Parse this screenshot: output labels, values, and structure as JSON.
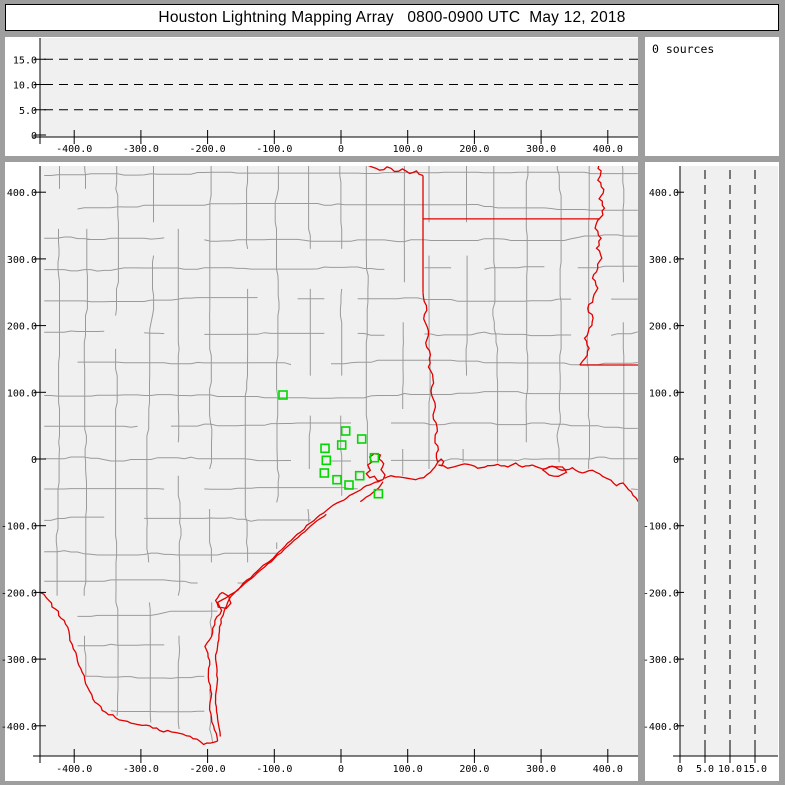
{
  "window": {
    "title": "Houston Lightning Mapping Array   0800-0900 UTC  May 12, 2018"
  },
  "sources_panel": {
    "label": "0 sources"
  },
  "colors": {
    "frame": "#9e9e9e",
    "panel": "#ffffff",
    "plot_bg": "#f0f0f0",
    "axis": "#000000",
    "county": "#9a9a9a",
    "state_border_red": "#e10000",
    "station_green": "#00d800",
    "text": "#000000"
  },
  "chart_data": {
    "type": "scatter",
    "subtype": "lma-multi-panel-map",
    "title": "Houston Lightning Mapping Array   0800-0900 UTC  May 12, 2018",
    "sources_count": 0,
    "units": "km",
    "ew_axis": {
      "ticks": [
        -400,
        -300,
        -200,
        -100,
        0,
        100,
        200,
        300,
        400
      ],
      "labels": [
        "-400.0",
        "-300.0",
        "-200.0",
        "-100.0",
        "0",
        "100.0",
        "200.0",
        "300.0",
        "400.0"
      ],
      "lim": [
        -450,
        445
      ]
    },
    "ns_axis": {
      "ticks": [
        400,
        300,
        200,
        100,
        0,
        -100,
        -200,
        -300,
        -400
      ],
      "labels": [
        "400.0",
        "300.0",
        "200.0",
        "100.0",
        "0",
        "-100.0",
        "-200.0",
        "-300.0",
        "-400.0"
      ],
      "lim": [
        -445,
        439
      ]
    },
    "alt_axis": {
      "ticks": [
        0,
        5,
        10,
        15
      ],
      "labels": [
        "0",
        "5.0",
        "10.0",
        "15.0"
      ],
      "dashed_levels": [
        5,
        10,
        15
      ],
      "lim": [
        0,
        19.2
      ]
    },
    "top_panel_series": [],
    "right_panel_series": [],
    "map": {
      "stations_km": [
        [
          -87,
          96
        ],
        [
          7,
          42
        ],
        [
          31,
          30
        ],
        [
          1,
          21
        ],
        [
          -24,
          16
        ],
        [
          -22,
          -2
        ],
        [
          50,
          2
        ],
        [
          -25,
          -21
        ],
        [
          28,
          -25
        ],
        [
          -6,
          -31
        ],
        [
          12,
          -39
        ],
        [
          56,
          -52
        ]
      ],
      "county_grid": {
        "cell_km": 47,
        "seed": 1234,
        "jog_probability": 0.25,
        "max_offset_km": 5,
        "skip_probability": 0.1
      },
      "borders_km": [
        {
          "name": "rio-grande",
          "amp": 2.2,
          "pts": [
            [
              -455,
              -195
            ],
            [
              -438,
              -212
            ],
            [
              -428,
              -225
            ],
            [
              -415,
              -242
            ],
            [
              -408,
              -258
            ],
            [
              -403,
              -278
            ],
            [
              -396,
              -297
            ],
            [
              -388,
              -320
            ],
            [
              -380,
              -342
            ],
            [
              -372,
              -360
            ],
            [
              -358,
              -377
            ],
            [
              -338,
              -388
            ],
            [
              -315,
              -396
            ],
            [
              -292,
              -399
            ],
            [
              -272,
              -407
            ],
            [
              -248,
              -410
            ],
            [
              -232,
              -415
            ],
            [
              -216,
              -420
            ],
            [
              -206,
              -428
            ],
            [
              -196,
              -426
            ],
            [
              -185,
              -423
            ]
          ]
        },
        {
          "name": "coast-texas",
          "amp": 1.2,
          "pts": [
            [
              -185,
              -423
            ],
            [
              -191,
              -400
            ],
            [
              -197,
              -376
            ],
            [
              -194,
              -352
            ],
            [
              -199,
              -327
            ],
            [
              -197,
              -302
            ],
            [
              -204,
              -281
            ],
            [
              -194,
              -266
            ],
            [
              -189,
              -242
            ],
            [
              -179,
              -227
            ],
            [
              -185,
              -215
            ],
            [
              -172,
              -208
            ],
            [
              -160,
              -200
            ],
            [
              -150,
              -191
            ],
            [
              -131,
              -173
            ],
            [
              -111,
              -156
            ],
            [
              -89,
              -136
            ],
            [
              -66,
              -113
            ],
            [
              -46,
              -96
            ],
            [
              -26,
              -81
            ],
            [
              -6,
              -66
            ],
            [
              9,
              -58
            ],
            [
              22,
              -50
            ],
            [
              30,
              -46
            ]
          ]
        },
        {
          "name": "lagoon-mainland",
          "amp": 0.8,
          "pts": [
            [
              30,
              -46
            ],
            [
              38,
              -40
            ],
            [
              47,
              -37
            ],
            [
              56,
              -34
            ],
            [
              62,
              -31
            ]
          ]
        },
        {
          "name": "galveston-island",
          "amp": 0.8,
          "pts": [
            [
              29,
              -64
            ],
            [
              38,
              -57
            ],
            [
              48,
              -50
            ],
            [
              56,
              -44
            ],
            [
              63,
              -34
            ]
          ]
        },
        {
          "name": "galveston-bay",
          "amp": 1.0,
          "pts": [
            [
              63,
              -31
            ],
            [
              66,
              -24
            ],
            [
              60,
              -16
            ],
            [
              64,
              -7
            ],
            [
              57,
              0
            ],
            [
              59,
              6
            ],
            [
              50,
              8
            ],
            [
              43,
              3
            ],
            [
              46,
              -5
            ],
            [
              40,
              -9
            ],
            [
              44,
              -17
            ],
            [
              38,
              -22
            ],
            [
              43,
              -28
            ],
            [
              50,
              -26
            ],
            [
              55,
              -33
            ],
            [
              63,
              -31
            ]
          ]
        },
        {
          "name": "coast-bolivar-east",
          "amp": 1.0,
          "pts": [
            [
              65,
              -29
            ],
            [
              75,
              -25
            ],
            [
              88,
              -27
            ],
            [
              100,
              -29
            ],
            [
              112,
              -31
            ],
            [
              124,
              -28
            ],
            [
              134,
              -20
            ],
            [
              141,
              -12
            ],
            [
              145,
              -5
            ]
          ]
        },
        {
          "name": "sabine-river",
          "amp": 2.0,
          "pts": [
            [
              123,
              250
            ],
            [
              128,
              230
            ],
            [
              124,
              210
            ],
            [
              131,
              192
            ],
            [
              127,
              174
            ],
            [
              134,
              156
            ],
            [
              131,
              138
            ],
            [
              138,
              120
            ],
            [
              135,
              102
            ],
            [
              141,
              84
            ],
            [
              138,
              66
            ],
            [
              144,
              48
            ],
            [
              141,
              30
            ],
            [
              146,
              14
            ],
            [
              143,
              2
            ],
            [
              145,
              -5
            ]
          ]
        },
        {
          "name": "sabine-lake",
          "amp": 0.6,
          "pts": [
            [
              145,
              -5
            ],
            [
              150,
              0
            ],
            [
              154,
              -4
            ],
            [
              151,
              -10
            ],
            [
              146,
              -9
            ],
            [
              147,
              -9
            ]
          ]
        },
        {
          "name": "coast-louisiana",
          "amp": 1.3,
          "pts": [
            [
              147,
              -9
            ],
            [
              160,
              -14
            ],
            [
              175,
              -10
            ],
            [
              190,
              -8
            ],
            [
              205,
              -14
            ],
            [
              220,
              -10
            ],
            [
              235,
              -8
            ],
            [
              250,
              -12
            ],
            [
              262,
              -6
            ],
            [
              272,
              -12
            ],
            [
              287,
              -9
            ],
            [
              302,
              -15
            ],
            [
              317,
              -11
            ],
            [
              332,
              -17
            ],
            [
              347,
              -13
            ],
            [
              362,
              -21
            ],
            [
              377,
              -17
            ],
            [
              392,
              -26
            ],
            [
              405,
              -32
            ],
            [
              413,
              -40
            ],
            [
              423,
              -36
            ],
            [
              431,
              -46
            ],
            [
              442,
              -58
            ],
            [
              450,
              -70
            ]
          ]
        },
        {
          "name": "marsh-island",
          "amp": 0.8,
          "pts": [
            [
              302,
              -16
            ],
            [
              312,
              -24
            ],
            [
              326,
              -26
            ],
            [
              338,
              -20
            ],
            [
              332,
              -12
            ],
            [
              316,
              -11
            ],
            [
              302,
              -16
            ]
          ]
        },
        {
          "name": "barrier-island",
          "amp": 1.0,
          "pts": [
            [
              -181,
              -416
            ],
            [
              -185,
              -390
            ],
            [
              -188,
              -360
            ],
            [
              -185,
              -330
            ],
            [
              -188,
              -300
            ],
            [
              -183,
              -270
            ],
            [
              -180,
              -240
            ],
            [
              -172,
              -221
            ],
            [
              -165,
              -206
            ],
            [
              -155,
              -196
            ],
            [
              -140,
              -183
            ],
            [
              -120,
              -166
            ],
            [
              -100,
              -149
            ],
            [
              -80,
              -131
            ],
            [
              -60,
              -113
            ],
            [
              -40,
              -96
            ],
            [
              -22,
              -83
            ]
          ]
        },
        {
          "name": "corpus-christi-bay",
          "amp": 0.8,
          "pts": [
            [
              -178,
              -200
            ],
            [
              -168,
              -206
            ],
            [
              -165,
              -216
            ],
            [
              -172,
              -224
            ],
            [
              -184,
              -222
            ],
            [
              -188,
              -212
            ],
            [
              -182,
              -203
            ],
            [
              -178,
              -200
            ]
          ]
        },
        {
          "name": "red-river",
          "amp": 2.0,
          "pts": [
            [
              34,
              446
            ],
            [
              46,
              438
            ],
            [
              58,
              433
            ],
            [
              69,
              438
            ],
            [
              80,
              431
            ],
            [
              92,
              435
            ],
            [
              103,
              428
            ],
            [
              113,
              432
            ],
            [
              123,
              425
            ]
          ]
        },
        {
          "name": "tx-ar-la-border",
          "amp": 0,
          "pts": [
            [
              123,
              425
            ],
            [
              123,
              250
            ]
          ]
        },
        {
          "name": "ar-la-33n",
          "amp": 0,
          "pts": [
            [
              123,
              360
            ],
            [
              388,
              360
            ]
          ]
        },
        {
          "name": "mississippi-river",
          "amp": 2.5,
          "pts": [
            [
              383,
              446
            ],
            [
              390,
              432
            ],
            [
              385,
              418
            ],
            [
              394,
              404
            ],
            [
              387,
              390
            ],
            [
              395,
              376
            ],
            [
              389,
              362
            ],
            [
              381,
              346
            ],
            [
              390,
              331
            ],
            [
              383,
              316
            ],
            [
              391,
              301
            ],
            [
              385,
              286
            ],
            [
              377,
              271
            ],
            [
              385,
              256
            ],
            [
              378,
              241
            ],
            [
              370,
              226
            ],
            [
              378,
              211
            ],
            [
              372,
              196
            ],
            [
              365,
              181
            ],
            [
              372,
              166
            ],
            [
              366,
              151
            ],
            [
              358,
              141
            ]
          ]
        },
        {
          "name": "la-ms-31n",
          "amp": 0,
          "pts": [
            [
              358,
              141
            ],
            [
              450,
              141
            ]
          ]
        }
      ]
    }
  }
}
